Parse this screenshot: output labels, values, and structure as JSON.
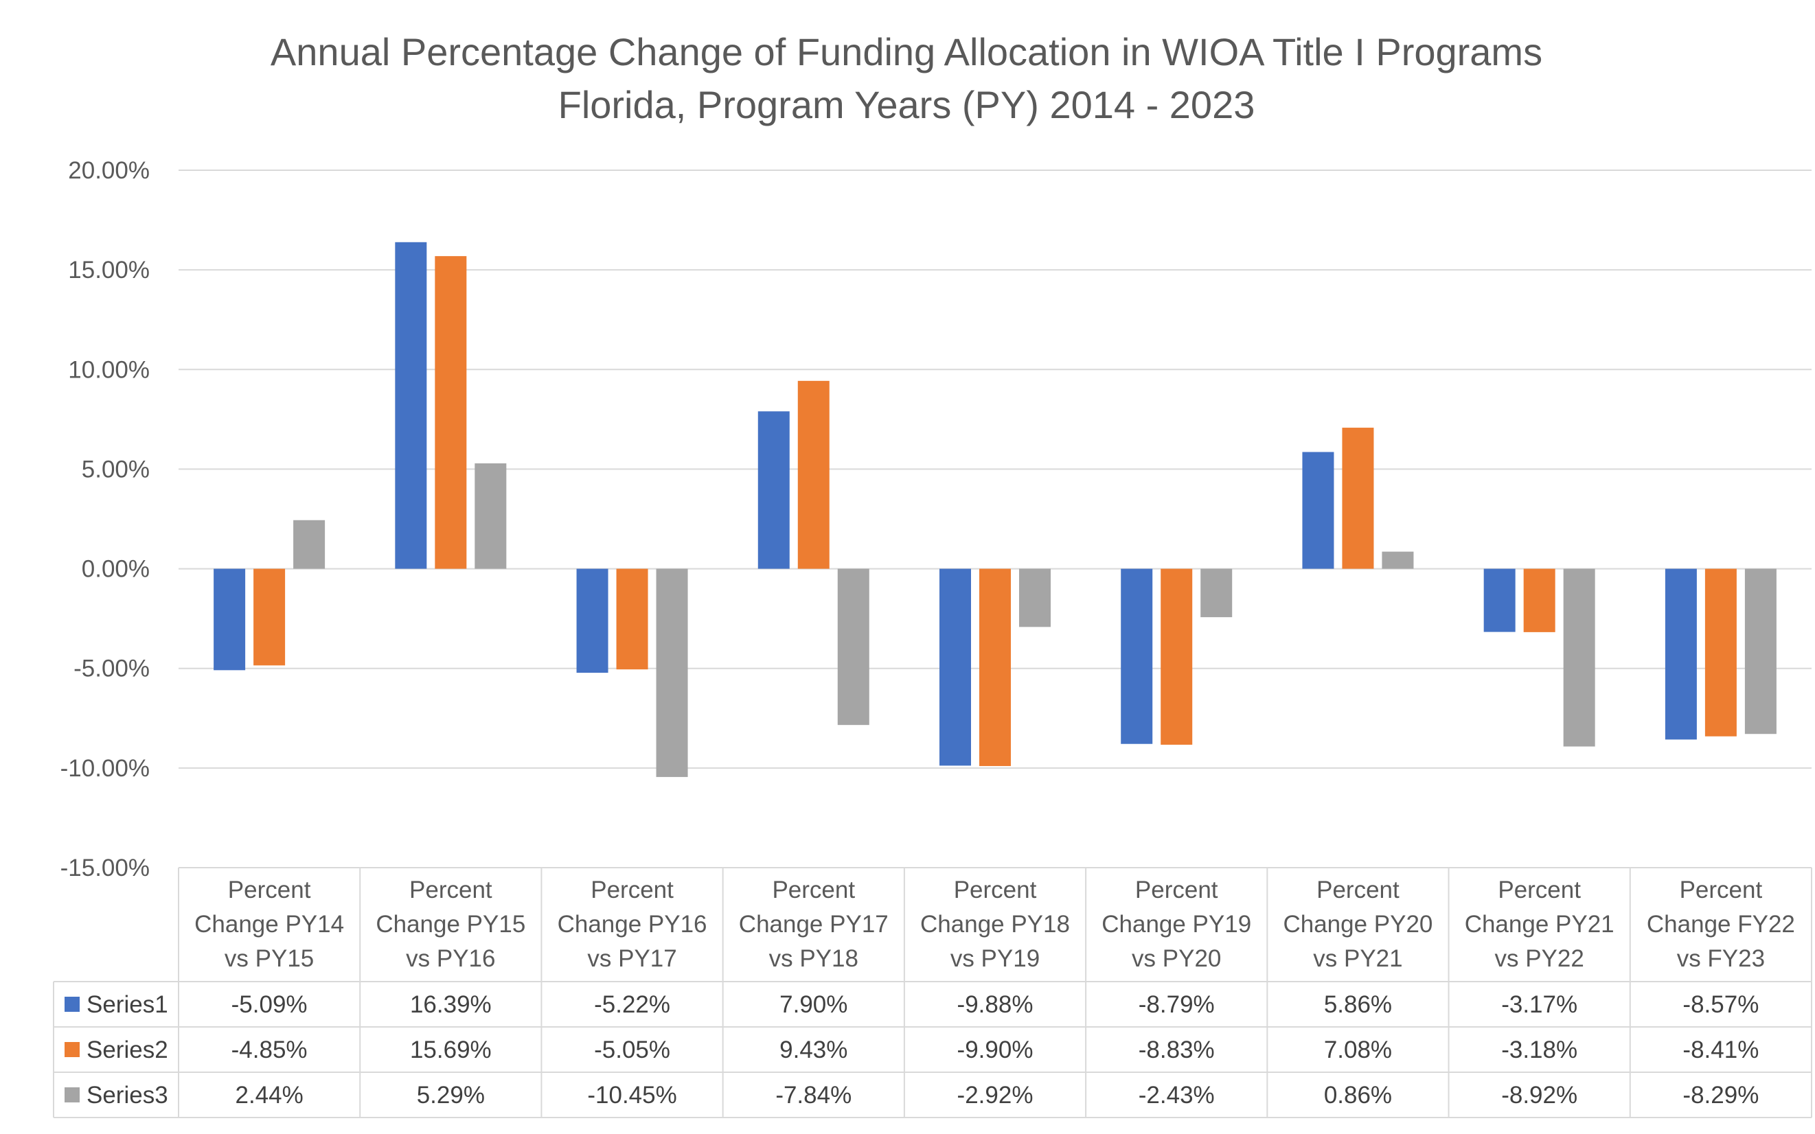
{
  "chart_data": {
    "type": "bar",
    "title": [
      "Annual Percentage Change of Funding Allocation in WIOA Title I Programs",
      "Florida, Program Years (PY) 2014 - 2023"
    ],
    "categories": [
      [
        "Percent",
        "Change PY14",
        "vs PY15"
      ],
      [
        "Percent",
        "Change PY15",
        "vs PY16"
      ],
      [
        "Percent",
        "Change PY16",
        "vs PY17"
      ],
      [
        "Percent",
        "Change PY17",
        "vs PY18"
      ],
      [
        "Percent",
        "Change PY18",
        "vs PY19"
      ],
      [
        "Percent",
        "Change PY19",
        "vs PY20"
      ],
      [
        "Percent",
        "Change PY20",
        "vs PY21"
      ],
      [
        "Percent",
        "Change PY21",
        "vs PY22"
      ],
      [
        "Percent",
        "Change FY22",
        "vs FY23"
      ]
    ],
    "series": [
      {
        "name": "Series1",
        "color": "#4472C4",
        "values": [
          -5.09,
          16.39,
          -5.22,
          7.9,
          -9.88,
          -8.79,
          5.86,
          -3.17,
          -8.57
        ],
        "labels": [
          "-5.09%",
          "16.39%",
          "-5.22%",
          "7.90%",
          "-9.88%",
          "-8.79%",
          "5.86%",
          "-3.17%",
          "-8.57%"
        ]
      },
      {
        "name": "Series2",
        "color": "#ED7D31",
        "values": [
          -4.85,
          15.69,
          -5.05,
          9.43,
          -9.9,
          -8.83,
          7.08,
          -3.18,
          -8.41
        ],
        "labels": [
          "-4.85%",
          "15.69%",
          "-5.05%",
          "9.43%",
          "-9.90%",
          "-8.83%",
          "7.08%",
          "-3.18%",
          "-8.41%"
        ]
      },
      {
        "name": "Series3",
        "color": "#A5A5A5",
        "values": [
          2.44,
          5.29,
          -10.45,
          -7.84,
          -2.92,
          -2.43,
          0.86,
          -8.92,
          -8.29
        ],
        "labels": [
          "2.44%",
          "5.29%",
          "-10.45%",
          "-7.84%",
          "-2.92%",
          "-2.43%",
          "0.86%",
          "-8.92%",
          "-8.29%"
        ]
      }
    ],
    "y_ticks": [
      20,
      15,
      10,
      5,
      0,
      -5,
      -10,
      -15
    ],
    "y_tick_labels": [
      "20.00%",
      "15.00%",
      "10.00%",
      "5.00%",
      "0.00%",
      "-5.00%",
      "-10.00%",
      "-15.00%"
    ],
    "ylim": [
      -15,
      20
    ],
    "grid": true,
    "legend": "data table below chart",
    "colors": {
      "grid": "#D9D9D9",
      "table_border": "#D9D9D9",
      "text": "#595959"
    }
  }
}
